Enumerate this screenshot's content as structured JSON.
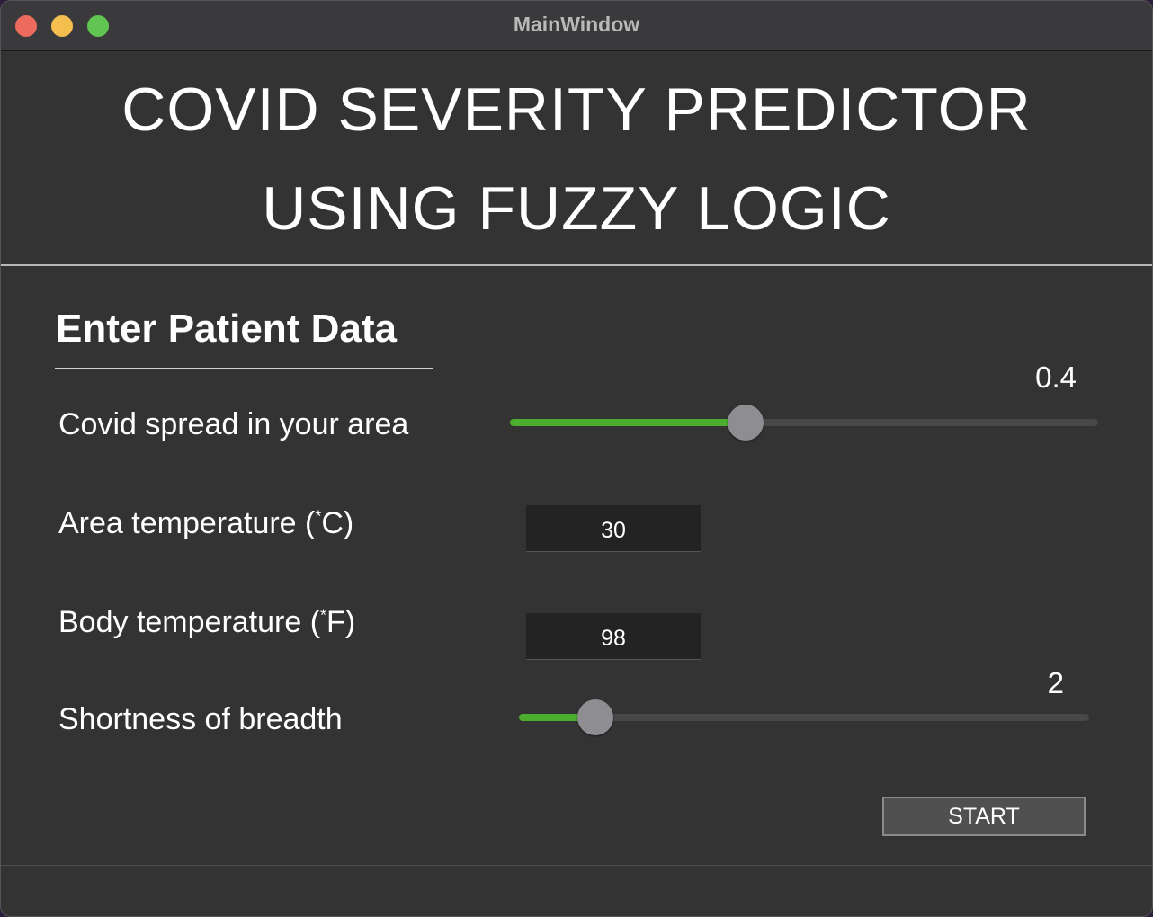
{
  "window": {
    "title": "MainWindow"
  },
  "header": {
    "line1": "COVID SEVERITY PREDICTOR",
    "line2": "USING FUZZY LOGIC"
  },
  "form": {
    "section_title": "Enter Patient Data",
    "spread": {
      "label": "Covid spread in your area",
      "value_text": "0.4",
      "fraction": 0.4
    },
    "area_temp": {
      "label_main": "Area temperature (",
      "label_sup": "*",
      "label_end": "C)",
      "value": "30"
    },
    "body_temp": {
      "label_main": "Body temperature (",
      "label_sup": "*",
      "label_end": "F)",
      "value": "98"
    },
    "breath": {
      "label": "Shortness of breadth",
      "value_text": "2",
      "fraction": 0.134
    },
    "start_label": "START"
  },
  "colors": {
    "slider_fill": "#4bae2e",
    "background": "#333333"
  }
}
